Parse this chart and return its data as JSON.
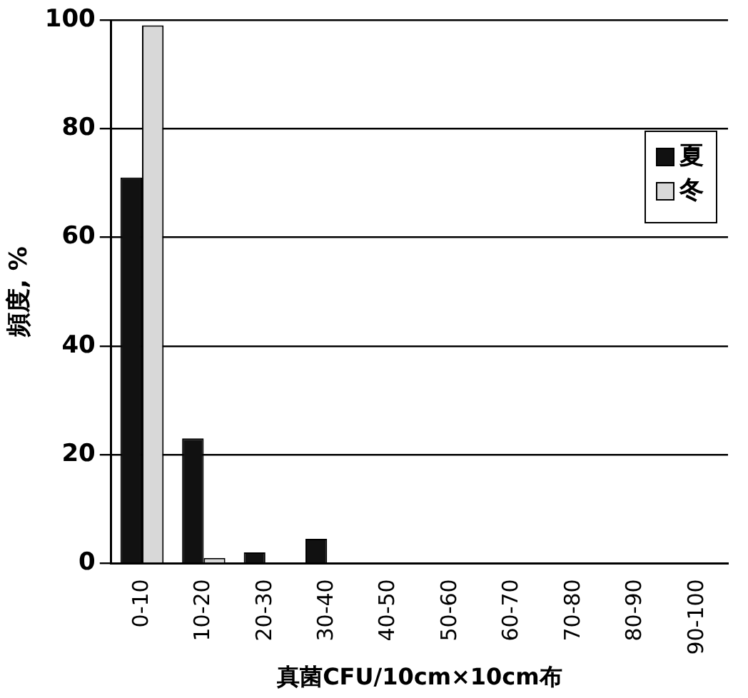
{
  "chart_data": {
    "type": "bar",
    "xlabel": "真菌CFU/10cm×10cm布",
    "ylabel": "頻度, %",
    "categories": [
      "0-10",
      "10-20",
      "20-30",
      "30-40",
      "40-50",
      "50-60",
      "60-70",
      "70-80",
      "80-90",
      "90-100"
    ],
    "series": [
      {
        "name": "夏",
        "color": "#111111",
        "values": [
          71,
          23,
          2,
          4.5,
          0,
          0,
          0,
          0,
          0,
          0
        ]
      },
      {
        "name": "冬",
        "color": "#d8d8d8",
        "values": [
          99,
          1,
          0,
          0,
          0,
          0,
          0,
          0,
          0,
          0
        ]
      }
    ],
    "ylim": [
      0,
      100
    ],
    "yticks": [
      0,
      20,
      40,
      60,
      80,
      100
    ],
    "grid": "y",
    "legend": "top right"
  }
}
